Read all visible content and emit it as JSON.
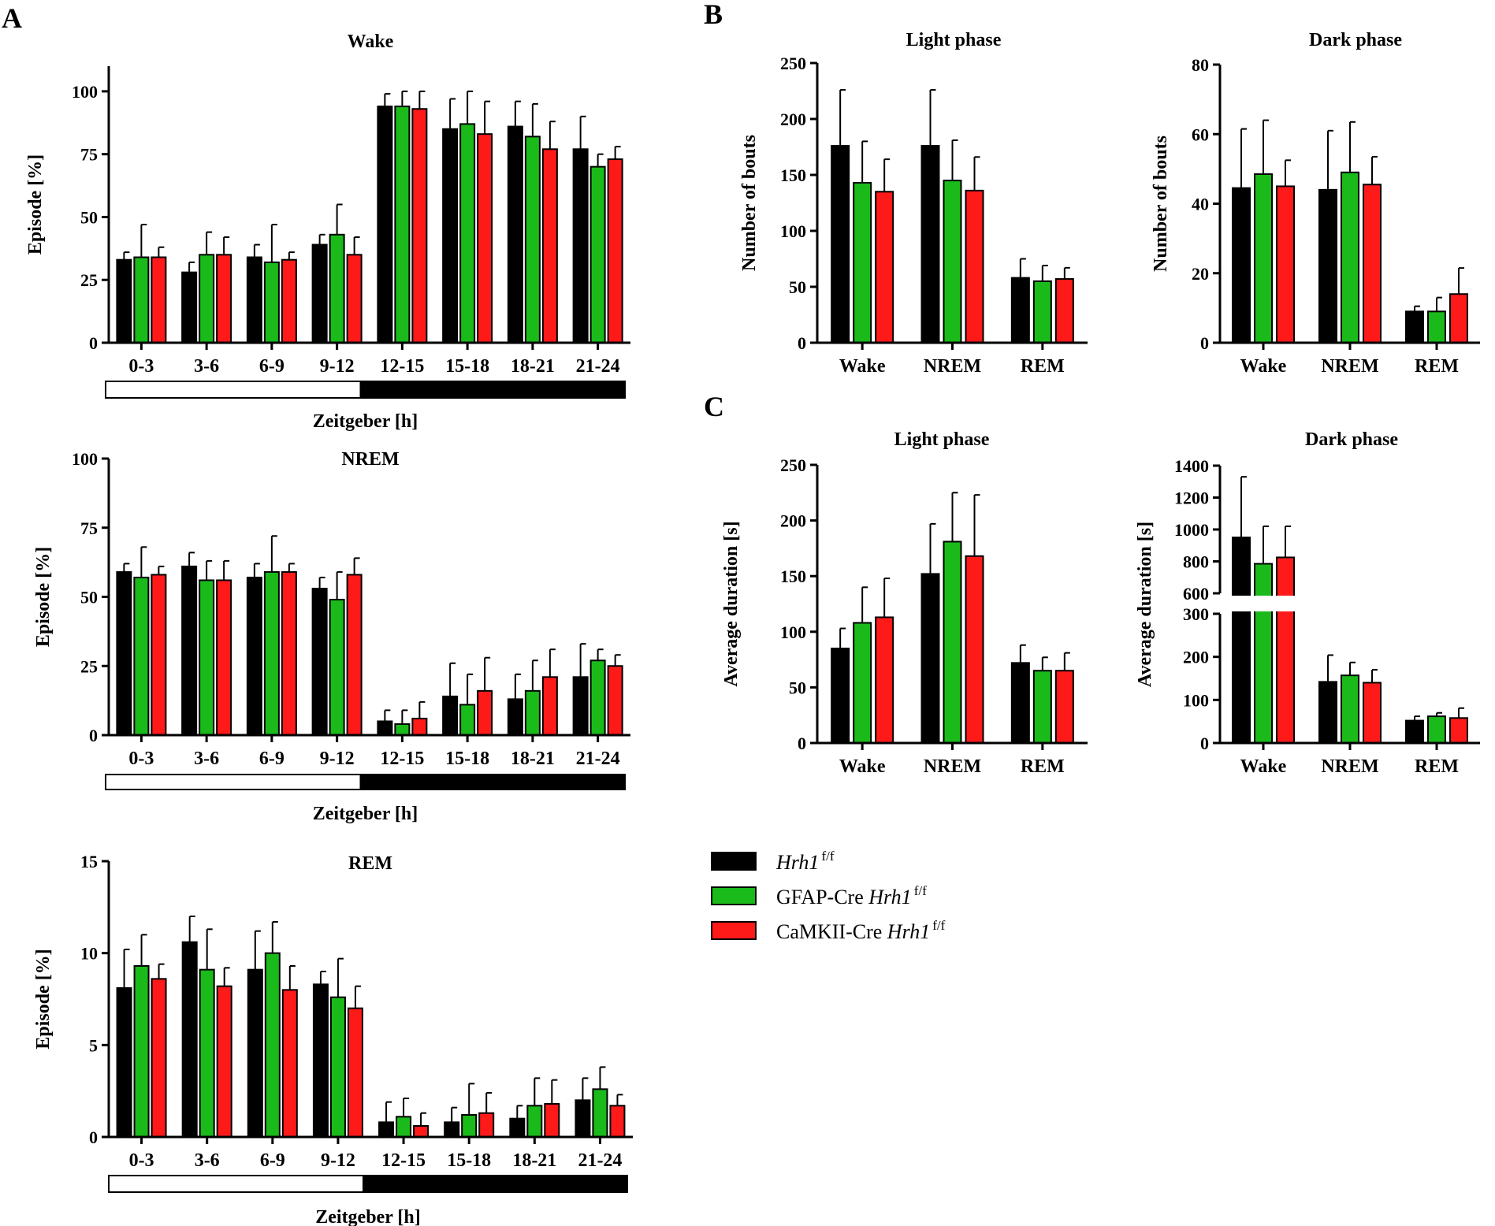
{
  "colors": {
    "Hrh1f/f": "#000000",
    "GFAP-Cre Hrh1f/f": "#1aba1a",
    "CaMKII-Cre Hrh1f/f": "#ff1a1a"
  },
  "panels": {
    "A": "A",
    "B": "B",
    "C": "C"
  },
  "legend": [
    {
      "key": "Hrh1f/f",
      "prefix": "",
      "italic": "Hrh1",
      "sup": "f/f",
      "color": "#000000"
    },
    {
      "key": "GFAP-Cre Hrh1f/f",
      "prefix": "GFAP-Cre ",
      "italic": "Hrh1",
      "sup": "f/f",
      "color": "#1aba1a"
    },
    {
      "key": "CaMKII-Cre Hrh1f/f",
      "prefix": "CaMKII-Cre ",
      "italic": "Hrh1",
      "sup": "f/f",
      "color": "#ff1a1a"
    }
  ],
  "chart_data": [
    {
      "id": "A-wake",
      "panel": "A",
      "type": "bar",
      "title": "Wake",
      "xlabel": "Zeitgeber [h]",
      "ylabel": "Episode [%]",
      "categories": [
        "0-3",
        "3-6",
        "6-9",
        "9-12",
        "12-15",
        "15-18",
        "18-21",
        "21-24"
      ],
      "ylim": [
        0,
        110
      ],
      "yticks": [
        0,
        25,
        50,
        75,
        100
      ],
      "light_dark_bar": true,
      "series": [
        {
          "name": "Hrh1f/f",
          "values": [
            33,
            28,
            34,
            39,
            94,
            85,
            86,
            77
          ],
          "errors": [
            3,
            4,
            5,
            4,
            5,
            12,
            10,
            13
          ]
        },
        {
          "name": "GFAP-Cre Hrh1f/f",
          "values": [
            34,
            35,
            32,
            43,
            94,
            87,
            82,
            70
          ],
          "errors": [
            13,
            9,
            15,
            12,
            6,
            13,
            13,
            5
          ]
        },
        {
          "name": "CaMKII-Cre Hrh1f/f",
          "values": [
            34,
            35,
            33,
            35,
            93,
            83,
            77,
            73
          ],
          "errors": [
            4,
            7,
            3,
            7,
            7,
            13,
            11,
            5
          ]
        }
      ]
    },
    {
      "id": "A-nrem",
      "panel": "A",
      "type": "bar",
      "title": "NREM",
      "xlabel": "Zeitgeber [h]",
      "ylabel": "Episode [%]",
      "categories": [
        "0-3",
        "3-6",
        "6-9",
        "9-12",
        "12-15",
        "15-18",
        "18-21",
        "21-24"
      ],
      "ylim": [
        0,
        100
      ],
      "yticks": [
        0,
        25,
        50,
        75,
        100
      ],
      "light_dark_bar": true,
      "series": [
        {
          "name": "Hrh1f/f",
          "values": [
            59,
            61,
            57,
            53,
            5,
            14,
            13,
            21
          ],
          "errors": [
            3,
            5,
            5,
            4,
            4,
            12,
            9,
            12
          ]
        },
        {
          "name": "GFAP-Cre Hrh1f/f",
          "values": [
            57,
            56,
            59,
            49,
            4,
            11,
            16,
            27
          ],
          "errors": [
            11,
            7,
            13,
            10,
            5,
            11,
            11,
            4
          ]
        },
        {
          "name": "CaMKII-Cre Hrh1f/f",
          "values": [
            58,
            56,
            59,
            58,
            6,
            16,
            21,
            25
          ],
          "errors": [
            3,
            7,
            3,
            6,
            6,
            12,
            10,
            4
          ]
        }
      ]
    },
    {
      "id": "A-rem",
      "panel": "A",
      "type": "bar",
      "title": "REM",
      "xlabel": "Zeitgeber [h]",
      "ylabel": "Episode [%]",
      "categories": [
        "0-3",
        "3-6",
        "6-9",
        "9-12",
        "12-15",
        "15-18",
        "18-21",
        "21-24"
      ],
      "ylim": [
        0,
        15
      ],
      "yticks": [
        0,
        5,
        10,
        15
      ],
      "light_dark_bar": true,
      "series": [
        {
          "name": "Hrh1f/f",
          "values": [
            8.1,
            10.6,
            9.1,
            8.3,
            0.8,
            0.8,
            1.0,
            2.0
          ],
          "errors": [
            2.1,
            1.4,
            2.1,
            0.7,
            1.1,
            0.8,
            0.7,
            1.2
          ]
        },
        {
          "name": "GFAP-Cre Hrh1f/f",
          "values": [
            9.3,
            9.1,
            10.0,
            7.6,
            1.1,
            1.2,
            1.7,
            2.6
          ],
          "errors": [
            1.7,
            2.2,
            1.7,
            2.1,
            1.0,
            1.7,
            1.5,
            1.2
          ]
        },
        {
          "name": "CaMKII-Cre Hrh1f/f",
          "values": [
            8.6,
            8.2,
            8.0,
            7.0,
            0.6,
            1.3,
            1.8,
            1.7
          ],
          "errors": [
            0.8,
            1.0,
            1.3,
            1.2,
            0.7,
            1.1,
            1.3,
            0.6
          ]
        }
      ]
    },
    {
      "id": "B-light",
      "panel": "B",
      "type": "bar",
      "title": "Light phase",
      "xlabel": "",
      "ylabel": "Number of bouts",
      "categories": [
        "Wake",
        "NREM",
        "REM"
      ],
      "ylim": [
        0,
        250
      ],
      "yticks": [
        0,
        50,
        100,
        150,
        200,
        250
      ],
      "series": [
        {
          "name": "Hrh1f/f",
          "values": [
            176,
            176,
            58
          ],
          "errors": [
            50,
            50,
            17
          ]
        },
        {
          "name": "GFAP-Cre Hrh1f/f",
          "values": [
            143,
            145,
            55
          ],
          "errors": [
            37,
            36,
            14
          ]
        },
        {
          "name": "CaMKII-Cre Hrh1f/f",
          "values": [
            135,
            136,
            57
          ],
          "errors": [
            29,
            30,
            10
          ]
        }
      ]
    },
    {
      "id": "B-dark",
      "panel": "B",
      "type": "bar",
      "title": "Dark phase",
      "xlabel": "",
      "ylabel": "Number of bouts",
      "categories": [
        "Wake",
        "NREM",
        "REM"
      ],
      "ylim": [
        0,
        80
      ],
      "yticks": [
        0,
        20,
        40,
        60,
        80
      ],
      "series": [
        {
          "name": "Hrh1f/f",
          "values": [
            44.5,
            44,
            9
          ],
          "errors": [
            17,
            17,
            1.5
          ]
        },
        {
          "name": "GFAP-Cre Hrh1f/f",
          "values": [
            48.5,
            49,
            9
          ],
          "errors": [
            15.5,
            14.5,
            4
          ]
        },
        {
          "name": "CaMKII-Cre Hrh1f/f",
          "values": [
            45,
            45.5,
            14
          ],
          "errors": [
            7.5,
            8,
            7.5
          ]
        }
      ]
    },
    {
      "id": "C-light",
      "panel": "C",
      "type": "bar",
      "title": "Light phase",
      "xlabel": "",
      "ylabel": "Average duration [s]",
      "categories": [
        "Wake",
        "NREM",
        "REM"
      ],
      "ylim": [
        0,
        250
      ],
      "yticks": [
        0,
        50,
        100,
        150,
        200,
        250
      ],
      "series": [
        {
          "name": "Hrh1f/f",
          "values": [
            85,
            152,
            72
          ],
          "errors": [
            18,
            45,
            16
          ]
        },
        {
          "name": "GFAP-Cre Hrh1f/f",
          "values": [
            108,
            181,
            65
          ],
          "errors": [
            32,
            44,
            12
          ]
        },
        {
          "name": "CaMKII-Cre Hrh1f/f",
          "values": [
            113,
            168,
            65
          ],
          "errors": [
            35,
            55,
            16
          ]
        }
      ]
    },
    {
      "id": "C-dark",
      "panel": "C",
      "type": "bar",
      "title": "Dark phase",
      "xlabel": "",
      "ylabel": "Average duration [s]",
      "categories": [
        "Wake",
        "NREM",
        "REM"
      ],
      "broken_axis": {
        "lower": [
          0,
          300
        ],
        "upper": [
          600,
          1400
        ]
      },
      "yticks_lower": [
        0,
        100,
        200,
        300
      ],
      "yticks_upper": [
        600,
        800,
        1000,
        1200,
        1400
      ],
      "series": [
        {
          "name": "Hrh1f/f",
          "values": [
            950,
            142,
            52
          ],
          "errors": [
            380,
            62,
            10
          ]
        },
        {
          "name": "GFAP-Cre Hrh1f/f",
          "values": [
            785,
            157,
            62
          ],
          "errors": [
            235,
            30,
            8
          ]
        },
        {
          "name": "CaMKII-Cre Hrh1f/f",
          "values": [
            825,
            140,
            58
          ],
          "errors": [
            195,
            30,
            23
          ]
        }
      ]
    }
  ]
}
